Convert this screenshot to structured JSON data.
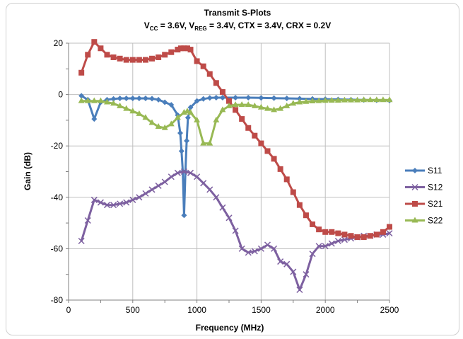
{
  "chart_data": {
    "type": "line",
    "title": "Transmit S-Plots",
    "subtitle_parts": [
      "V",
      "CC",
      " = 3.6V, V",
      "REG",
      " = 3.4V, CTX = 3.4V, CRX = 0.2V"
    ],
    "xlabel": "Frequency (MHz)",
    "ylabel": "Gain (dB)",
    "xlim": [
      0,
      2500
    ],
    "ylim": [
      -80,
      20
    ],
    "xticks": [
      0,
      500,
      1000,
      1500,
      2000,
      2500
    ],
    "yticks": [
      -80,
      -60,
      -40,
      -20,
      0,
      20
    ],
    "grid": true,
    "legend_position": "right",
    "series": [
      {
        "name": "S11",
        "color": "#4a7ebb",
        "marker": "diamond",
        "x": [
          100,
          150,
          200,
          250,
          300,
          350,
          400,
          450,
          500,
          550,
          600,
          650,
          700,
          750,
          800,
          850,
          870,
          880,
          890,
          900,
          910,
          920,
          930,
          950,
          1000,
          1050,
          1100,
          1150,
          1200,
          1300,
          1400,
          1500,
          1600,
          1700,
          1800,
          1900,
          2000,
          2100,
          2200,
          2300,
          2400,
          2500
        ],
        "y": [
          -0.5,
          -2,
          -9.5,
          -3,
          -2,
          -1.7,
          -1.5,
          -1.5,
          -1.5,
          -1.5,
          -1.5,
          -1.6,
          -2,
          -3,
          -4,
          -8,
          -15,
          -22,
          -30,
          -47,
          -30,
          -18,
          -9,
          -5,
          -2.5,
          -1.7,
          -1.3,
          -1.2,
          -1.2,
          -1.2,
          -1.2,
          -1.3,
          -1.4,
          -1.5,
          -1.6,
          -1.7,
          -1.8,
          -1.9,
          -2,
          -2.1,
          -2.2,
          -2.3
        ]
      },
      {
        "name": "S12",
        "color": "#7d60a0",
        "marker": "x",
        "x": [
          100,
          150,
          200,
          250,
          300,
          350,
          400,
          450,
          500,
          550,
          600,
          650,
          700,
          750,
          800,
          850,
          900,
          950,
          1000,
          1050,
          1100,
          1150,
          1200,
          1250,
          1300,
          1350,
          1400,
          1450,
          1500,
          1550,
          1600,
          1650,
          1700,
          1750,
          1800,
          1850,
          1900,
          1950,
          2000,
          2050,
          2100,
          2150,
          2200,
          2250,
          2300,
          2350,
          2400,
          2450,
          2500
        ],
        "y": [
          -57,
          -49,
          -41,
          -42,
          -43,
          -43,
          -42.5,
          -42,
          -41,
          -40,
          -38.5,
          -37,
          -35.5,
          -34,
          -32,
          -30.5,
          -30,
          -30.5,
          -32,
          -34.5,
          -37,
          -40,
          -44,
          -48,
          -53,
          -60,
          -61.5,
          -61,
          -60,
          -58.5,
          -60,
          -65,
          -66,
          -69,
          -76,
          -70,
          -62,
          -59,
          -59,
          -58,
          -57,
          -56.5,
          -56,
          -55.5,
          -55,
          -55,
          -54.5,
          -54.5,
          -54
        ]
      },
      {
        "name": "S21",
        "color": "#be4b48",
        "marker": "square",
        "x": [
          100,
          150,
          200,
          250,
          300,
          350,
          400,
          450,
          500,
          550,
          600,
          650,
          700,
          750,
          800,
          850,
          875,
          900,
          925,
          950,
          1000,
          1050,
          1100,
          1150,
          1200,
          1250,
          1300,
          1350,
          1400,
          1450,
          1500,
          1550,
          1600,
          1650,
          1700,
          1750,
          1800,
          1850,
          1900,
          1950,
          2000,
          2050,
          2100,
          2150,
          2200,
          2250,
          2300,
          2350,
          2400,
          2450,
          2500
        ],
        "y": [
          8.5,
          15.5,
          20.5,
          18,
          15.5,
          14.5,
          14,
          13.5,
          13.5,
          13.5,
          13.5,
          14,
          14.5,
          15.5,
          16.5,
          17.5,
          18,
          18,
          18,
          17.5,
          13,
          11,
          8,
          4.5,
          1,
          -2.5,
          -6,
          -9.5,
          -13,
          -16,
          -19,
          -22,
          -25,
          -29,
          -33,
          -38,
          -43,
          -47,
          -50.5,
          -52.5,
          -53.5,
          -53.5,
          -54,
          -54.5,
          -55,
          -55.5,
          -55.5,
          -55,
          -54.5,
          -53.5,
          -51.5
        ]
      },
      {
        "name": "S22",
        "color": "#98b954",
        "marker": "triangle",
        "x": [
          100,
          150,
          200,
          250,
          300,
          350,
          400,
          450,
          500,
          550,
          600,
          650,
          700,
          750,
          800,
          850,
          900,
          925,
          950,
          1000,
          1050,
          1100,
          1150,
          1200,
          1250,
          1300,
          1350,
          1400,
          1450,
          1500,
          1550,
          1600,
          1650,
          1700,
          1750,
          1800,
          1850,
          1900,
          1950,
          2000,
          2050,
          2100,
          2150,
          2200,
          2250,
          2300,
          2350,
          2400,
          2450,
          2500
        ],
        "y": [
          -2.5,
          -2.5,
          -2.5,
          -2.5,
          -3,
          -3.5,
          -4.5,
          -5.5,
          -6.5,
          -7.5,
          -9,
          -11,
          -12.5,
          -13,
          -11.5,
          -9,
          -7,
          -6.5,
          -7,
          -10,
          -19,
          -19,
          -10,
          -6,
          -4.5,
          -4,
          -4,
          -4,
          -4.5,
          -5,
          -5.5,
          -6,
          -5.5,
          -4.5,
          -3.5,
          -3,
          -2.8,
          -2.6,
          -2.5,
          -2.4,
          -2.3,
          -2.3,
          -2.2,
          -2.2,
          -2.2,
          -2.1,
          -2.1,
          -2.1,
          -2.1,
          -2.1
        ]
      }
    ]
  }
}
